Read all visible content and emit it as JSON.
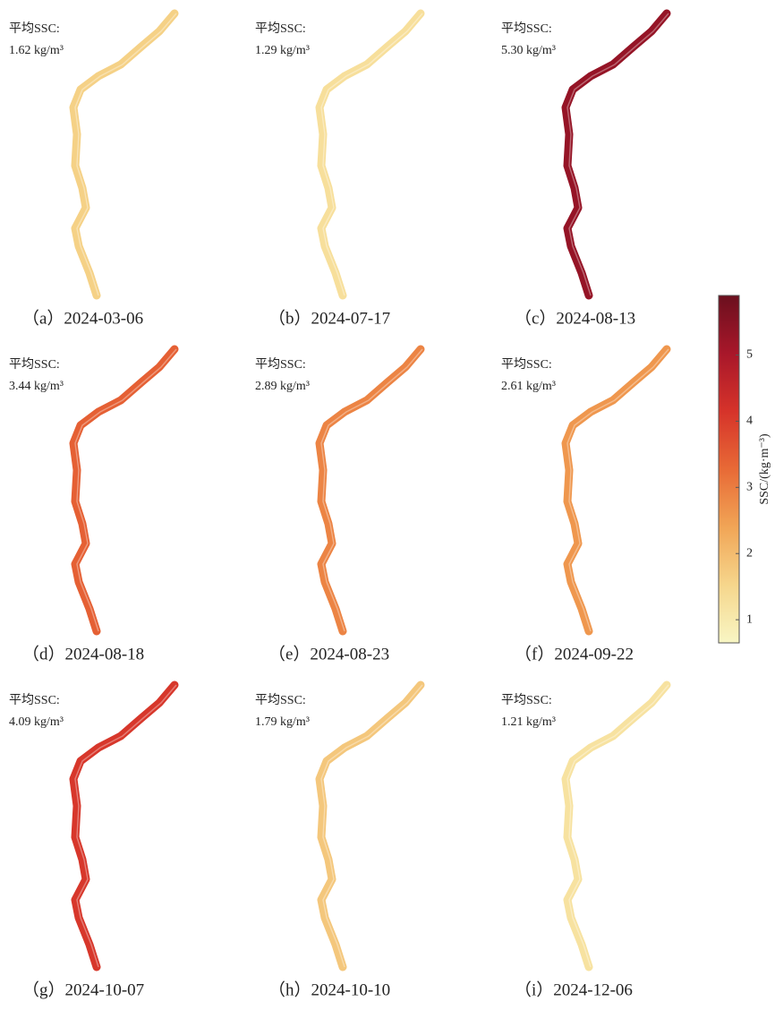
{
  "panels": [
    {
      "title": "平均SSC:",
      "mean": 1.62,
      "mean_label": "1.62 kg/m³",
      "caption": "（a）2024-03-06"
    },
    {
      "title": "平均SSC:",
      "mean": 1.29,
      "mean_label": "1.29 kg/m³",
      "caption": "（b）2024-07-17"
    },
    {
      "title": "平均SSC:",
      "mean": 5.3,
      "mean_label": "5.30 kg/m³",
      "caption": "（c）2024-08-13"
    },
    {
      "title": "平均SSC:",
      "mean": 3.44,
      "mean_label": "3.44 kg/m³",
      "caption": "（d）2024-08-18"
    },
    {
      "title": "平均SSC:",
      "mean": 2.89,
      "mean_label": "2.89 kg/m³",
      "caption": "（e）2024-08-23"
    },
    {
      "title": "平均SSC:",
      "mean": 2.61,
      "mean_label": "2.61 kg/m³",
      "caption": "（f）2024-09-22"
    },
    {
      "title": "平均SSC:",
      "mean": 4.09,
      "mean_label": "4.09 kg/m³",
      "caption": "（g）2024-10-07"
    },
    {
      "title": "平均SSC:",
      "mean": 1.79,
      "mean_label": "1.79 kg/m³",
      "caption": "（h）2024-10-10"
    },
    {
      "title": "平均SSC:",
      "mean": 1.21,
      "mean_label": "1.21 kg/m³",
      "caption": "（i）2024-12-06"
    }
  ],
  "colorbar": {
    "label": "SSC/(kg·m⁻³)",
    "lim": [
      0.65,
      5.9
    ],
    "ticks": [
      1,
      2,
      3,
      4,
      5
    ],
    "colors": [
      "#f8f6c4",
      "#f6d68c",
      "#f1a556",
      "#e86a36",
      "#d6332a",
      "#a8172a",
      "#6b0f1e"
    ]
  }
}
